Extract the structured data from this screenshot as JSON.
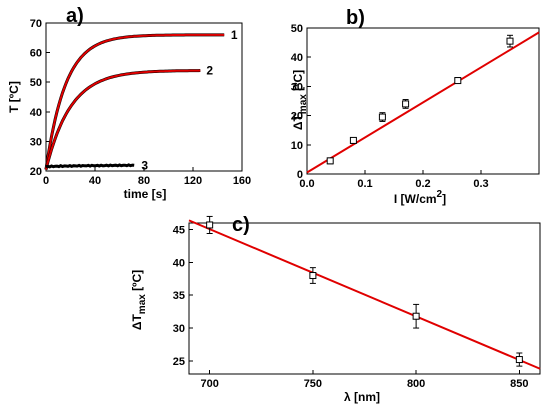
{
  "chart_data": [
    {
      "id": "a",
      "type": "line",
      "panel_label": "a)",
      "xlabel": "time [s]",
      "ylabel": "T [ºC]",
      "xlim": [
        0,
        160
      ],
      "ylim": [
        20,
        70
      ],
      "x_ticks": [
        0,
        40,
        80,
        120,
        160
      ],
      "y_ticks": [
        20,
        30,
        40,
        50,
        60,
        70
      ],
      "series": [
        {
          "label": "1",
          "T0": 20.5,
          "Tmax": 66.0,
          "tau": 16,
          "t_end": 146,
          "fit": true
        },
        {
          "label": "2",
          "T0": 20.5,
          "Tmax": 54.0,
          "tau": 20,
          "t_end": 126,
          "fit": true
        },
        {
          "label": "3",
          "T0": 21.5,
          "Tmax": 22.0,
          "tau": 40,
          "t_end": 73,
          "fit": false
        }
      ]
    },
    {
      "id": "b",
      "type": "scatter",
      "panel_label": "b)",
      "xlabel": "I [W/cm2]",
      "ylabel": "ΔTmax [ºC]",
      "xlim": [
        0.0,
        0.4
      ],
      "ylim": [
        0,
        50
      ],
      "x_ticks": [
        "0.0",
        "0.1",
        "0.2",
        "0.3"
      ],
      "y_ticks": [
        0,
        10,
        20,
        30,
        40,
        50
      ],
      "points": [
        {
          "x": 0.04,
          "y": 4.5,
          "err": 1.0
        },
        {
          "x": 0.08,
          "y": 11.5,
          "err": 1.0
        },
        {
          "x": 0.13,
          "y": 19.5,
          "err": 1.5
        },
        {
          "x": 0.17,
          "y": 24.0,
          "err": 1.5
        },
        {
          "x": 0.26,
          "y": 32.0,
          "err": 1.0
        },
        {
          "x": 0.35,
          "y": 45.5,
          "err": 2.0
        }
      ],
      "fit": {
        "x0": 0.0,
        "y0": 0.5,
        "x1": 0.4,
        "y1": 48.5
      }
    },
    {
      "id": "c",
      "type": "scatter",
      "panel_label": "c)",
      "xlabel": "λ [nm]",
      "ylabel": "ΔTmax [ºC]",
      "xlim": [
        690,
        860
      ],
      "ylim": [
        23,
        46
      ],
      "x_ticks": [
        700,
        750,
        800,
        850
      ],
      "y_ticks": [
        25,
        30,
        35,
        40,
        45
      ],
      "points": [
        {
          "x": 700,
          "y": 45.7,
          "err": 1.3
        },
        {
          "x": 750,
          "y": 38.0,
          "err": 1.2
        },
        {
          "x": 800,
          "y": 31.8,
          "err": 1.8
        },
        {
          "x": 850,
          "y": 25.2,
          "err": 1.0
        }
      ],
      "fit": {
        "x0": 690,
        "y0": 46.4,
        "x1": 860,
        "y1": 23.8
      }
    }
  ]
}
